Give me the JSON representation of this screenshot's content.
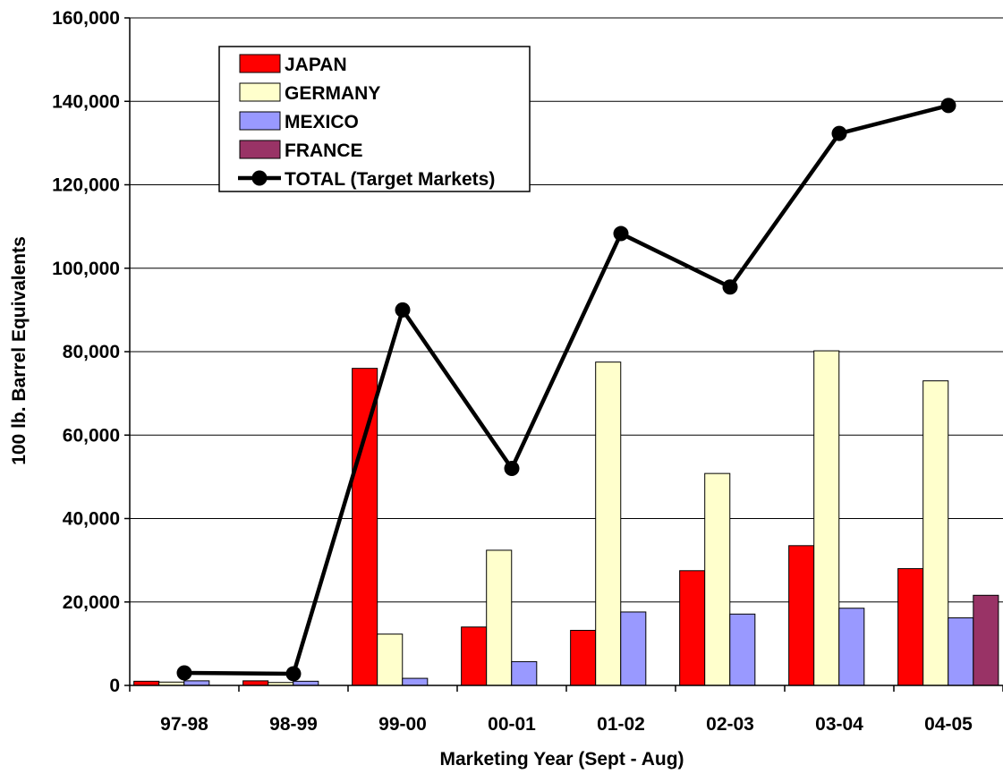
{
  "chart_data": {
    "type": "bar",
    "title": "",
    "xlabel": "Marketing Year (Sept - Aug)",
    "ylabel": "100 lb. Barrel Equivalents",
    "categories": [
      "97-98",
      "98-99",
      "99-00",
      "00-01",
      "01-02",
      "02-03",
      "03-04",
      "04-05"
    ],
    "ylim": [
      0,
      160000
    ],
    "yticks": [
      0,
      20000,
      40000,
      60000,
      80000,
      100000,
      120000,
      140000,
      160000
    ],
    "ytick_labels": [
      "0",
      "20,000",
      "40,000",
      "60,000",
      "80,000",
      "100,000",
      "120,000",
      "140,000",
      "160,000"
    ],
    "grid": true,
    "legend_position": "top-left",
    "series": [
      {
        "name": "JAPAN",
        "type": "bar",
        "color": "#ff0000",
        "values": [
          1000,
          1100,
          76000,
          14000,
          13200,
          27500,
          33500,
          28000
        ]
      },
      {
        "name": "GERMANY",
        "type": "bar",
        "color": "#ffffcc",
        "values": [
          800,
          700,
          12300,
          32400,
          77500,
          50800,
          80200,
          73000
        ]
      },
      {
        "name": "MEXICO",
        "type": "bar",
        "color": "#9999ff",
        "values": [
          1100,
          1000,
          1700,
          5700,
          17600,
          17100,
          18500,
          16200
        ]
      },
      {
        "name": "FRANCE",
        "type": "bar",
        "color": "#993366",
        "values": [
          0,
          0,
          0,
          0,
          0,
          0,
          0,
          21600
        ]
      },
      {
        "name": "TOTAL (Target Markets)",
        "type": "line",
        "color": "#000000",
        "values": [
          3000,
          2800,
          90000,
          52000,
          108300,
          95500,
          132300,
          139000
        ]
      }
    ]
  }
}
